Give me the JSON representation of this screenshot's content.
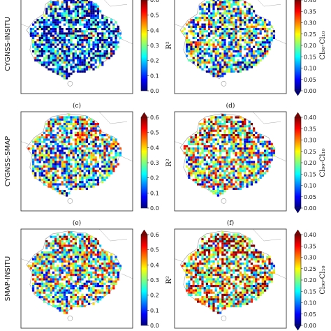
{
  "chart_data": [
    {
      "type": "heatmap",
      "id": "a",
      "panel_label": "",
      "row_label": "CYGNSS-INSITU",
      "colorbar_label": "R²",
      "clim": [
        0,
        0.6
      ],
      "ticks": [
        "0.0",
        "0.1",
        "0.2",
        "0.3",
        "0.4",
        "0.5",
        "0.6"
      ],
      "dominant_value": 0.08,
      "seed": 11
    },
    {
      "type": "heatmap",
      "id": "b",
      "panel_label": "",
      "row_label": "",
      "colorbar_label": "Cl₉₀-Cl₁₀",
      "clim": [
        0,
        0.4
      ],
      "ticks": [
        "0.00",
        "0.05",
        "0.10",
        "0.15",
        "0.20",
        "0.25",
        "0.30",
        "0.35",
        "0.40"
      ],
      "dominant_value": 0.16,
      "seed": 23
    },
    {
      "type": "heatmap",
      "id": "c",
      "panel_label": "(c)",
      "row_label": "CYGNSS-SMAP",
      "colorbar_label": "R²",
      "clim": [
        0,
        0.6
      ],
      "ticks": [
        "0.0",
        "0.1",
        "0.2",
        "0.3",
        "0.4",
        "0.5",
        "0.6"
      ],
      "dominant_value": 0.25,
      "seed": 37
    },
    {
      "type": "heatmap",
      "id": "d",
      "panel_label": "(d)",
      "row_label": "",
      "colorbar_label": "Cl₉₀-Cl₁₀",
      "clim": [
        0,
        0.4
      ],
      "ticks": [
        "0.00",
        "0.05",
        "0.10",
        "0.15",
        "0.20",
        "0.25",
        "0.30",
        "0.35",
        "0.40"
      ],
      "dominant_value": 0.2,
      "seed": 41
    },
    {
      "type": "heatmap",
      "id": "e",
      "panel_label": "(e)",
      "row_label": "SMAP-INSITU",
      "colorbar_label": "R²",
      "clim": [
        0,
        0.6
      ],
      "ticks": [
        "0.0",
        "0.1",
        "0.2",
        "0.3",
        "0.4",
        "0.5",
        "0.6"
      ],
      "dominant_value": 0.3,
      "seed": 53
    },
    {
      "type": "heatmap",
      "id": "f",
      "panel_label": "(f)",
      "row_label": "",
      "colorbar_label": "Cl₉₀-Cl₁₀",
      "clim": [
        0,
        0.4
      ],
      "ticks": [
        "0.00",
        "0.05",
        "0.10",
        "0.15",
        "0.20",
        "0.25",
        "0.30",
        "0.35",
        "0.40"
      ],
      "dominant_value": 0.27,
      "seed": 67
    }
  ],
  "colormap": [
    "#00007f",
    "#0000ff",
    "#007fff",
    "#00ffff",
    "#7fff7f",
    "#ffff00",
    "#ff7f00",
    "#ff0000",
    "#7f0000"
  ]
}
